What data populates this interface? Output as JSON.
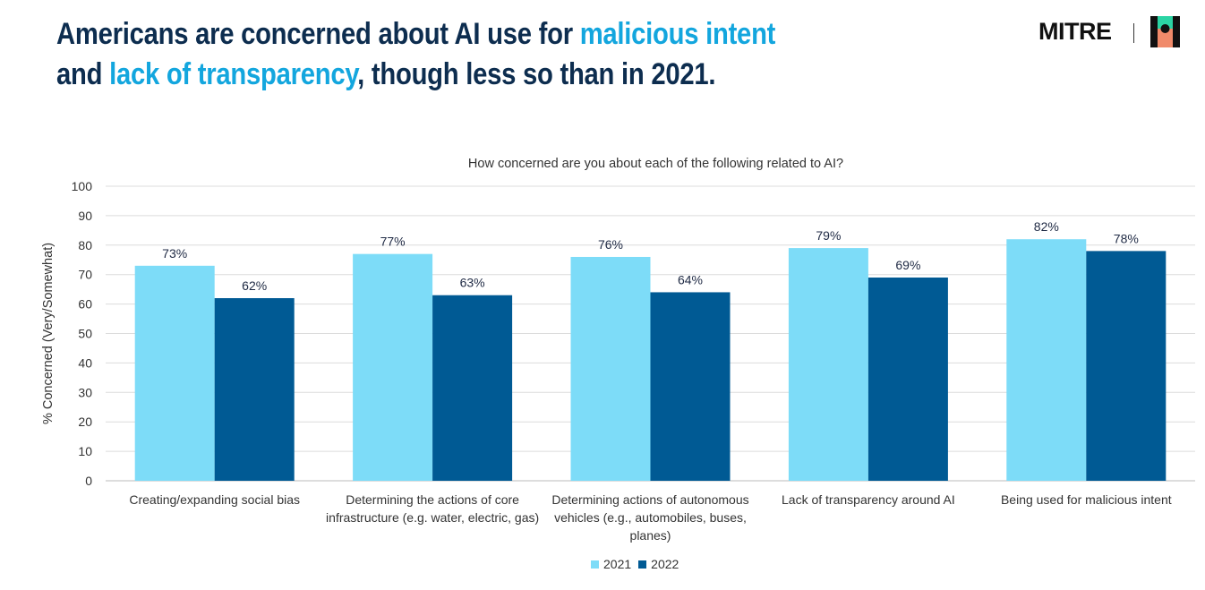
{
  "header": {
    "title_part1": "Americans are concerned about AI use for ",
    "title_hl1": "malicious intent",
    "title_part2": "and ",
    "title_hl2": "lack of transparency",
    "title_part3": ", though less so than in 2021."
  },
  "logo": {
    "text": "MITRE",
    "icon": "mitre-mark-icon"
  },
  "colors": {
    "series2021": "#7ddcf8",
    "series2022": "#005a94",
    "highlight": "#13a6de",
    "title": "#0d2d4f"
  },
  "chart_data": {
    "type": "bar",
    "title": "How concerned are you about each of the following related to AI?",
    "ylabel": "% Concerned (Very/Somewhat)",
    "xlabel": "",
    "ylim": [
      0,
      100
    ],
    "yticks": [
      0,
      10,
      20,
      30,
      40,
      50,
      60,
      70,
      80,
      90,
      100
    ],
    "grid": true,
    "legend_position": "bottom",
    "categories": [
      [
        "Creating/expanding social bias"
      ],
      [
        "Determining the actions of core",
        "infrastructure (e.g. water, electric, gas)"
      ],
      [
        "Determining actions of autonomous",
        "vehicles (e.g., automobiles, buses,",
        "planes)"
      ],
      [
        "Lack of transparency around AI"
      ],
      [
        "Being used for malicious intent"
      ]
    ],
    "series": [
      {
        "name": "2021",
        "values": [
          73,
          77,
          76,
          79,
          82
        ],
        "labels": [
          "73%",
          "77%",
          "76%",
          "79%",
          "82%"
        ]
      },
      {
        "name": "2022",
        "values": [
          62,
          63,
          64,
          69,
          78
        ],
        "labels": [
          "62%",
          "63%",
          "64%",
          "69%",
          "78%"
        ]
      }
    ]
  }
}
